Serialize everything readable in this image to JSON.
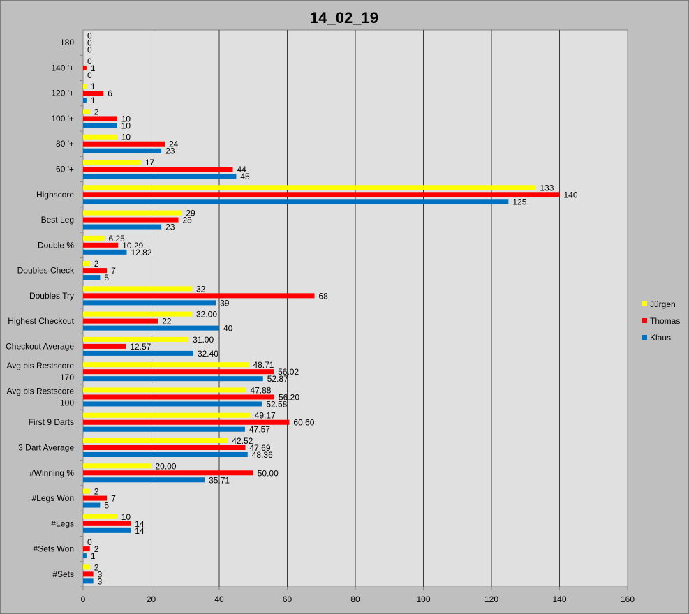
{
  "chart_data": {
    "type": "bar",
    "orientation": "horizontal",
    "title": "14_02_19",
    "xlabel": "",
    "ylabel": "",
    "xlim": [
      0,
      160
    ],
    "x_ticks": [
      0,
      20,
      40,
      60,
      80,
      100,
      120,
      140,
      160
    ],
    "grid": "vertical",
    "legend_position": "right",
    "categories": [
      [
        "180"
      ],
      [
        "140 '+"
      ],
      [
        "120 '+"
      ],
      [
        "100 '+"
      ],
      [
        "80 '+"
      ],
      [
        "60 '+"
      ],
      [
        "Highscore"
      ],
      [
        "Best Leg"
      ],
      [
        "Double %"
      ],
      [
        "Doubles Check"
      ],
      [
        "Doubles Try"
      ],
      [
        "Highest Checkout"
      ],
      [
        "Checkout Average"
      ],
      [
        "Avg bis Restscore",
        "170"
      ],
      [
        "Avg bis Restscore",
        "100"
      ],
      [
        "First 9 Darts"
      ],
      [
        "3 Dart Average"
      ],
      [
        "#Winning %"
      ],
      [
        "#Legs Won"
      ],
      [
        "#Legs"
      ],
      [
        "#Sets Won"
      ],
      [
        "#Sets"
      ]
    ],
    "series": [
      {
        "name": "Jürgen",
        "color": "#ffff00",
        "values": [
          0,
          0,
          1,
          2,
          10,
          17,
          133,
          29,
          6.25,
          2,
          32,
          32,
          31,
          48.71,
          47.88,
          49.17,
          42.52,
          20,
          2,
          10,
          0,
          2
        ],
        "labels": [
          "0",
          "0",
          "1",
          "2",
          "10",
          "17",
          "133",
          "29",
          "6.25",
          "2",
          "32",
          "32.00",
          "31.00",
          "48.71",
          "47.88",
          "49.17",
          "42.52",
          "20.00",
          "2",
          "10",
          "0",
          "2"
        ]
      },
      {
        "name": "Thomas",
        "color": "#ff0000",
        "values": [
          0,
          1,
          6,
          10,
          24,
          44,
          140,
          28,
          10.29,
          7,
          68,
          22,
          12.57,
          56.02,
          56.2,
          60.6,
          47.69,
          50,
          7,
          14,
          2,
          3
        ],
        "labels": [
          "0",
          "1",
          "6",
          "10",
          "24",
          "44",
          "140",
          "28",
          "10.29",
          "7",
          "68",
          "22",
          "12.57",
          "56.02",
          "56.20",
          "60.60",
          "47.69",
          "50.00",
          "7",
          "14",
          "2",
          "3"
        ]
      },
      {
        "name": "Klaus",
        "color": "#0070c0",
        "values": [
          0,
          0,
          1,
          10,
          23,
          45,
          125,
          23,
          12.82,
          5,
          39,
          40,
          32.4,
          52.87,
          52.58,
          47.57,
          48.36,
          35.71,
          5,
          14,
          1,
          3
        ],
        "labels": [
          "0",
          "0",
          "1",
          "10",
          "23",
          "45",
          "125",
          "23",
          "12.82",
          "5",
          "39",
          "40",
          "32.40",
          "52.87",
          "52.58",
          "47.57",
          "48.36",
          "35.71",
          "5",
          "14",
          "1",
          "3"
        ]
      }
    ]
  }
}
